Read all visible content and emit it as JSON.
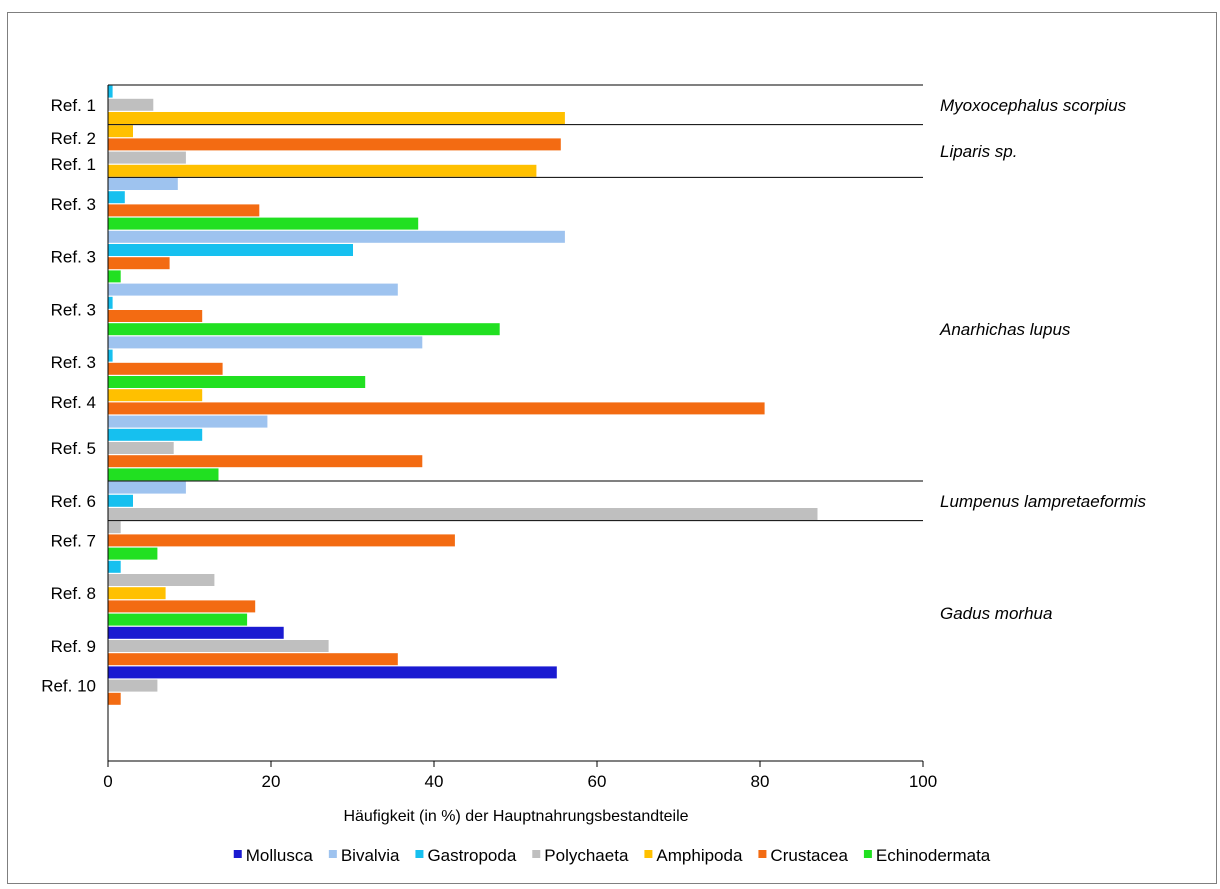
{
  "chart_data": {
    "type": "bar",
    "orientation": "horizontal",
    "xlabel": "Häufigkeit (in %) der Hauptnahrungsbestandteile",
    "xlim": [
      0,
      100
    ],
    "xticks": [
      0,
      20,
      40,
      60,
      80,
      100
    ],
    "grid": false,
    "legend_position": "bottom",
    "categories": [
      "Mollusca",
      "Bivalvia",
      "Gastropoda",
      "Polychaeta",
      "Amphipoda",
      "Crustacea",
      "Echinodermata"
    ],
    "colors": {
      "Mollusca": "#1a1ad1",
      "Bivalvia": "#9ec3ef",
      "Gastropoda": "#16c0ef",
      "Polychaeta": "#bfbfbf",
      "Amphipoda": "#ffc000",
      "Crustacea": "#f36b12",
      "Echinodermata": "#21e021"
    },
    "groups": [
      {
        "label": "Ref. 1",
        "species": "Myoxocephalus scorpius",
        "bars": [
          {
            "category": "Gastropoda",
            "value": 0.5
          },
          {
            "category": "Polychaeta",
            "value": 5.5
          },
          {
            "category": "Amphipoda",
            "value": 56
          }
        ]
      },
      {
        "label": "Ref. 2",
        "species": "Liparis sp.",
        "bars": [
          {
            "category": "Amphipoda",
            "value": 3
          },
          {
            "category": "Crustacea",
            "value": 55.5
          }
        ]
      },
      {
        "label": "Ref. 1",
        "species": "Liparis sp.",
        "bars": [
          {
            "category": "Polychaeta",
            "value": 9.5
          },
          {
            "category": "Amphipoda",
            "value": 52.5
          }
        ]
      },
      {
        "label": "Ref. 3",
        "species": "Anarhichas lupus",
        "bars": [
          {
            "category": "Bivalvia",
            "value": 8.5
          },
          {
            "category": "Gastropoda",
            "value": 2
          },
          {
            "category": "Crustacea",
            "value": 18.5
          },
          {
            "category": "Echinodermata",
            "value": 38
          }
        ]
      },
      {
        "label": "Ref. 3",
        "species": "Anarhichas lupus",
        "bars": [
          {
            "category": "Bivalvia",
            "value": 56
          },
          {
            "category": "Gastropoda",
            "value": 30
          },
          {
            "category": "Crustacea",
            "value": 7.5
          },
          {
            "category": "Echinodermata",
            "value": 1.5
          }
        ]
      },
      {
        "label": "Ref. 3",
        "species": "Anarhichas lupus",
        "bars": [
          {
            "category": "Bivalvia",
            "value": 35.5
          },
          {
            "category": "Gastropoda",
            "value": 0.5
          },
          {
            "category": "Crustacea",
            "value": 11.5
          },
          {
            "category": "Echinodermata",
            "value": 48
          }
        ]
      },
      {
        "label": "Ref. 3",
        "species": "Anarhichas lupus",
        "bars": [
          {
            "category": "Bivalvia",
            "value": 38.5
          },
          {
            "category": "Gastropoda",
            "value": 0.5
          },
          {
            "category": "Crustacea",
            "value": 14
          },
          {
            "category": "Echinodermata",
            "value": 31.5
          }
        ]
      },
      {
        "label": "Ref. 4",
        "species": "Anarhichas lupus",
        "bars": [
          {
            "category": "Amphipoda",
            "value": 11.5
          },
          {
            "category": "Crustacea",
            "value": 80.5
          }
        ]
      },
      {
        "label": "Ref. 5",
        "species": "Anarhichas lupus",
        "bars": [
          {
            "category": "Bivalvia",
            "value": 19.5
          },
          {
            "category": "Gastropoda",
            "value": 11.5
          },
          {
            "category": "Polychaeta",
            "value": 8
          },
          {
            "category": "Crustacea",
            "value": 38.5
          },
          {
            "category": "Echinodermata",
            "value": 13.5
          }
        ]
      },
      {
        "label": "Ref. 6",
        "species": "Lumpenus lampretaeformis",
        "bars": [
          {
            "category": "Bivalvia",
            "value": 9.5
          },
          {
            "category": "Gastropoda",
            "value": 3
          },
          {
            "category": "Polychaeta",
            "value": 87
          }
        ]
      },
      {
        "label": "Ref. 7",
        "species": "Gadus morhua",
        "bars": [
          {
            "category": "Polychaeta",
            "value": 1.5
          },
          {
            "category": "Crustacea",
            "value": 42.5
          },
          {
            "category": "Echinodermata",
            "value": 6
          }
        ]
      },
      {
        "label": "Ref. 8",
        "species": "Gadus morhua",
        "bars": [
          {
            "category": "Gastropoda",
            "value": 1.5
          },
          {
            "category": "Polychaeta",
            "value": 13
          },
          {
            "category": "Amphipoda",
            "value": 7
          },
          {
            "category": "Crustacea",
            "value": 18
          },
          {
            "category": "Echinodermata",
            "value": 17
          }
        ]
      },
      {
        "label": "Ref. 9",
        "species": "Gadus morhua",
        "bars": [
          {
            "category": "Mollusca",
            "value": 21.5
          },
          {
            "category": "Polychaeta",
            "value": 27
          },
          {
            "category": "Crustacea",
            "value": 35.5
          }
        ]
      },
      {
        "label": "Ref. 10",
        "species": "Gadus morhua",
        "bars": [
          {
            "category": "Mollusca",
            "value": 55
          },
          {
            "category": "Polychaeta",
            "value": 6
          },
          {
            "category": "Crustacea",
            "value": 1.5
          }
        ]
      }
    ],
    "species_labels": [
      "Myoxocephalus scorpius",
      "Liparis sp.",
      "Anarhichas lupus",
      "Lumpenus lampretaeformis",
      "Gadus morhua"
    ]
  }
}
